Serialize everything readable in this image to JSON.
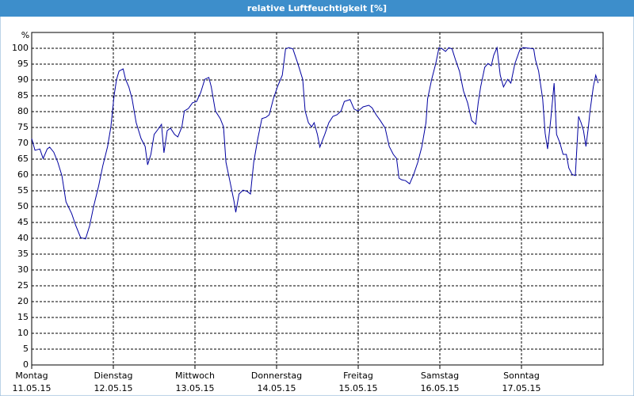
{
  "chart_data": {
    "type": "line",
    "title": "relative Luftfeuchtigkeit [%]",
    "ylabel": "%",
    "xticks": [
      {
        "value": 0,
        "label": "Montag"
      },
      {
        "value": 1,
        "label": "Dienstag"
      },
      {
        "value": 2,
        "label": "Mittwoch"
      },
      {
        "value": 3,
        "label": "Donnerstag"
      },
      {
        "value": 4,
        "label": "Freitag"
      },
      {
        "value": 5,
        "label": "Samstag"
      },
      {
        "value": 6,
        "label": "Sonntag"
      }
    ],
    "xtick_dates": [
      "11.05.15",
      "12.05.15",
      "13.05.15",
      "14.05.15",
      "15.05.15",
      "16.05.15",
      "17.05.15"
    ],
    "xlim": [
      0,
      7
    ],
    "ylim": [
      0,
      105
    ],
    "yticks": [
      0,
      5,
      10,
      15,
      20,
      25,
      30,
      35,
      40,
      45,
      50,
      55,
      60,
      65,
      70,
      75,
      80,
      85,
      90,
      95,
      100
    ],
    "grid": true,
    "series": [
      {
        "color": "#0000a0",
        "x": [
          0.0,
          0.04,
          0.1,
          0.14,
          0.19,
          0.22,
          0.27,
          0.32,
          0.37,
          0.42,
          0.49,
          0.54,
          0.6,
          0.66,
          0.71,
          0.76,
          0.82,
          0.87,
          0.93,
          0.97,
          1.01,
          1.04,
          1.07,
          1.12,
          1.15,
          1.19,
          1.23,
          1.28,
          1.34,
          1.39,
          1.42,
          1.46,
          1.5,
          1.55,
          1.59,
          1.62,
          1.66,
          1.7,
          1.75,
          1.79,
          1.84,
          1.87,
          1.92,
          1.97,
          2.02,
          2.07,
          2.12,
          2.17,
          2.2,
          2.25,
          2.31,
          2.35,
          2.38,
          2.43,
          2.48,
          2.5,
          2.54,
          2.59,
          2.64,
          2.68,
          2.72,
          2.77,
          2.82,
          2.87,
          2.91,
          2.96,
          3.01,
          3.07,
          3.11,
          3.15,
          3.2,
          3.26,
          3.32,
          3.35,
          3.39,
          3.43,
          3.46,
          3.5,
          3.53,
          3.59,
          3.64,
          3.69,
          3.74,
          3.79,
          3.83,
          3.9,
          3.95,
          4.0,
          4.06,
          4.13,
          4.17,
          4.22,
          4.27,
          4.33,
          4.38,
          4.43,
          4.47,
          4.5,
          4.53,
          4.58,
          4.63,
          4.68,
          4.73,
          4.78,
          4.83,
          4.85,
          4.9,
          4.95,
          4.99,
          5.03,
          5.07,
          5.11,
          5.15,
          5.19,
          5.24,
          5.29,
          5.34,
          5.39,
          5.44,
          5.47,
          5.5,
          5.55,
          5.59,
          5.63,
          5.66,
          5.7,
          5.74,
          5.78,
          5.83,
          5.87,
          5.92,
          5.98,
          6.02,
          6.1,
          6.15,
          6.17,
          6.21,
          6.26,
          6.29,
          6.32,
          6.36,
          6.4,
          6.43,
          6.47,
          6.51,
          6.55,
          6.58,
          6.62,
          6.66,
          6.7,
          6.73,
          6.76,
          6.79,
          6.82,
          6.84,
          6.88,
          6.91,
          6.94
        ],
        "values": [
          71.5,
          67.8,
          68.2,
          65.2,
          68.2,
          68.8,
          67.2,
          64,
          59.8,
          51.5,
          47.8,
          44,
          40.2,
          39.8,
          44,
          50.2,
          56.5,
          62.8,
          69,
          75.2,
          85.2,
          90.2,
          92.8,
          93.5,
          90.2,
          87.8,
          84,
          76.5,
          71.5,
          69,
          63.2,
          66.5,
          72.8,
          74.5,
          76,
          67,
          74,
          74.8,
          72.8,
          72,
          75.2,
          80.2,
          81,
          82.8,
          83.2,
          86,
          90.2,
          90.8,
          87.8,
          80.2,
          77.8,
          75.2,
          64,
          57.8,
          51.5,
          48.2,
          54,
          55.2,
          54.8,
          54,
          64,
          71.5,
          77.8,
          78.2,
          79,
          84,
          87.8,
          91.5,
          99.8,
          100.2,
          99.8,
          95.2,
          90.2,
          80.2,
          76.5,
          75.2,
          76.5,
          72.8,
          68.8,
          72.8,
          76.5,
          78.5,
          79,
          80.2,
          83.2,
          83.8,
          80.8,
          80.2,
          81.5,
          82,
          81.2,
          79,
          77.2,
          74.8,
          69,
          66.5,
          65.2,
          59,
          58.5,
          58.2,
          57.2,
          60.2,
          64,
          69,
          76.5,
          84,
          90.2,
          95.2,
          100.2,
          99.8,
          99,
          100.2,
          99.8,
          96.5,
          92.8,
          86.5,
          82.8,
          77.2,
          76,
          82.8,
          87.8,
          94,
          95.2,
          94.5,
          97.8,
          100.2,
          91.5,
          87.8,
          90.2,
          89,
          95.2,
          99.5,
          100.2,
          100,
          99.8,
          96.5,
          92.8,
          84,
          73.2,
          68.2,
          77.8,
          89,
          72.8,
          70.2,
          66.5,
          66.5,
          62.2,
          60.2,
          59.8,
          78.5,
          76.5,
          74,
          69,
          75.2,
          80.2,
          87.8,
          91.5,
          89
        ]
      }
    ]
  }
}
